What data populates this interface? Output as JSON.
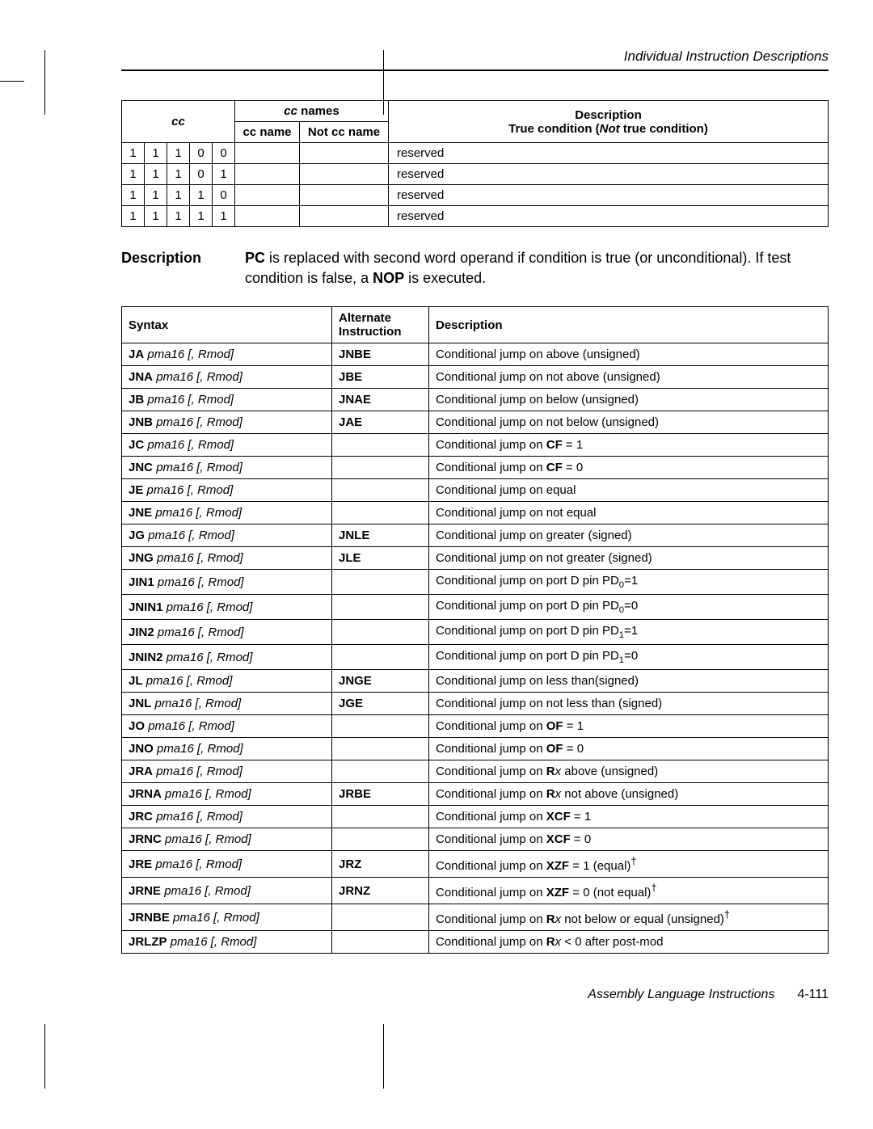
{
  "header": {
    "title": "Individual Instruction Descriptions"
  },
  "cc_table": {
    "header": {
      "cc": "cc",
      "cc_names": "cc names",
      "cc_name": "cc name",
      "not_cc_name": "Not cc name",
      "description": "Description",
      "subdesc_prefix": "True condition (",
      "subdesc_not": "Not",
      "subdesc_bold_tail": " true condition)"
    },
    "rows": [
      {
        "bits": [
          "1",
          "1",
          "1",
          "0",
          "0"
        ],
        "cc_name": "",
        "not_cc_name": "",
        "desc": "reserved"
      },
      {
        "bits": [
          "1",
          "1",
          "1",
          "0",
          "1"
        ],
        "cc_name": "",
        "not_cc_name": "",
        "desc": "reserved"
      },
      {
        "bits": [
          "1",
          "1",
          "1",
          "1",
          "0"
        ],
        "cc_name": "",
        "not_cc_name": "",
        "desc": "reserved"
      },
      {
        "bits": [
          "1",
          "1",
          "1",
          "1",
          "1"
        ],
        "cc_name": "",
        "not_cc_name": "",
        "desc": "reserved"
      }
    ]
  },
  "description": {
    "label": "Description",
    "pc": "PC",
    "line1_rest": " is replaced with second word operand if condition is true (or unconditional). If test condition is false, a ",
    "nop": "NOP",
    "line1_tail": " is executed."
  },
  "inst_table": {
    "header": {
      "syntax": "Syntax",
      "alt": "Alternate Instruction",
      "desc": "Description"
    },
    "arg_text": "pma16 [, Rmod]",
    "rows": [
      {
        "mn": "JA",
        "alt": "JNBE",
        "desc_pre": "Conditional jump on above (unsigned)"
      },
      {
        "mn": "JNA",
        "alt": "JBE",
        "desc_pre": "Conditional jump on not above (unsigned)"
      },
      {
        "mn": "JB",
        "alt": "JNAE",
        "desc_pre": "Conditional jump on below (unsigned)"
      },
      {
        "mn": "JNB",
        "alt": "JAE",
        "desc_pre": "Conditional jump on not below (unsigned)"
      },
      {
        "mn": "JC",
        "alt": "",
        "desc_pre": "Conditional jump on ",
        "bold": "CF",
        "desc_post": " = 1"
      },
      {
        "mn": "JNC",
        "alt": "",
        "desc_pre": "Conditional jump on ",
        "bold": "CF",
        "desc_post": " = 0"
      },
      {
        "mn": "JE",
        "alt": "",
        "desc_pre": "Conditional jump on equal"
      },
      {
        "mn": "JNE",
        "alt": "",
        "desc_pre": "Conditional jump on not equal"
      },
      {
        "mn": "JG",
        "alt": "JNLE",
        "desc_pre": "Conditional jump on greater (signed)"
      },
      {
        "mn": "JNG",
        "alt": "JLE",
        "desc_pre": "Conditional jump on not greater (signed)"
      },
      {
        "mn": "JIN1",
        "alt": "",
        "desc_pre": "Conditional jump on port D pin PD",
        "sub": "0",
        "desc_post": "=1"
      },
      {
        "mn": "JNIN1",
        "alt": "",
        "desc_pre": "Conditional jump on port D pin PD",
        "sub": "0",
        "desc_post": "=0"
      },
      {
        "mn": "JIN2",
        "alt": "",
        "desc_pre": "Conditional jump on port D pin PD",
        "sub": "1",
        "desc_post": "=1"
      },
      {
        "mn": "JNIN2",
        "alt": "",
        "desc_pre": "Conditional jump on port D pin PD",
        "sub": "1",
        "desc_post": "=0"
      },
      {
        "mn": "JL",
        "alt": "JNGE",
        "desc_pre": "Conditional jump on less than(signed)"
      },
      {
        "mn": "JNL",
        "alt": "JGE",
        "desc_pre": "Conditional jump on not less than (signed)"
      },
      {
        "mn": "JO",
        "alt": "",
        "desc_pre": "Conditional jump on ",
        "bold": "OF",
        "desc_post": " = 1"
      },
      {
        "mn": "JNO",
        "alt": "",
        "desc_pre": "Conditional jump on ",
        "bold": "OF",
        "desc_post": " = 0"
      },
      {
        "mn": "JRA",
        "alt": "",
        "desc_pre": "Conditional jump on ",
        "bold": "R",
        "italic_after_bold": "x",
        "desc_post": " above (unsigned)"
      },
      {
        "mn": "JRNA",
        "alt": "JRBE",
        "desc_pre": "Conditional jump on ",
        "bold": "R",
        "italic_after_bold": "x",
        "desc_post": " not above (unsigned)"
      },
      {
        "mn": "JRC",
        "alt": "",
        "desc_pre": "Conditional jump on ",
        "bold": "XCF",
        "desc_post": " = 1"
      },
      {
        "mn": "JRNC",
        "alt": "",
        "desc_pre": "Conditional jump on ",
        "bold": "XCF",
        "desc_post": " = 0"
      },
      {
        "mn": "JRE",
        "alt": "JRZ",
        "desc_pre": "Conditional jump on ",
        "bold": "XZF",
        "desc_post": " = 1 (equal)",
        "dagger": true
      },
      {
        "mn": "JRNE",
        "alt": "JRNZ",
        "desc_pre": "Conditional jump on ",
        "bold": "XZF",
        "desc_post": " = 0 (not equal)",
        "dagger": true
      },
      {
        "mn": "JRNBE",
        "alt": "",
        "desc_pre": "Conditional jump on ",
        "bold": "R",
        "italic_after_bold": "x",
        "desc_post": " not below or equal (unsigned)",
        "dagger": true
      },
      {
        "mn": "JRLZP",
        "alt": "",
        "desc_pre": "Conditional jump on ",
        "bold": "R",
        "italic_after_bold": "x",
        "desc_post": " < 0 after post-mod"
      }
    ]
  },
  "footer": {
    "text": "Assembly Language Instructions",
    "page": "4-111"
  }
}
